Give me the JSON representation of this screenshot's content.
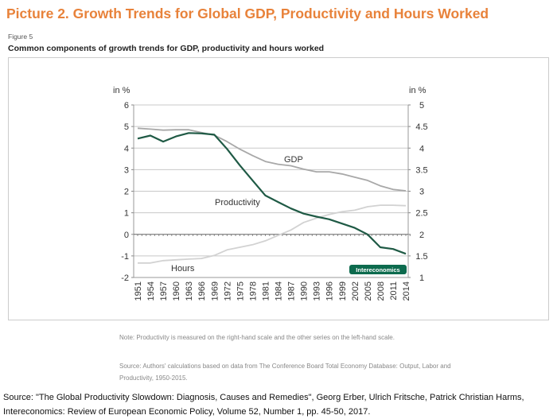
{
  "header": {
    "title": "Picture 2. Growth Trends for Global GDP, Productivity and Hours Worked",
    "figure_label": "Figure 5",
    "subtitle": "Common components of growth trends for GDP, productivity and hours worked"
  },
  "notes": {
    "note": "Note: Productivity is measured on the right-hand scale and the other series on the left-hand scale.",
    "source": "Source: Authors' calculations based on data from The Conference Board Total Economy Database: Output, Labor and Productivity, 1950-2015."
  },
  "footer": {
    "source_line1": "Source: \"The Global Productivity Slowdown: Diagnosis, Causes and Remedies\", Georg Erber, Ulrich Fritsche, Patrick Christian Harms,",
    "source_line2": "Intereconomics: Review of European Economic Policy, Volume 52, Number 1, pp. 45-50, 2017."
  },
  "chart_data": {
    "type": "line",
    "title": "Common components of growth trends for GDP, productivity and hours worked",
    "ylabel_left": "in %",
    "ylabel_right": "in %",
    "ylim_left": [
      -2,
      6
    ],
    "ylim_right": [
      1,
      5
    ],
    "yticks_left": [
      "6",
      "5",
      "4",
      "3",
      "2",
      "1",
      "0",
      "-1",
      "-2"
    ],
    "yticks_right": [
      "5",
      "4.5",
      "4",
      "3.5",
      "3",
      "2.5",
      "2",
      "1.5",
      "1"
    ],
    "grid": true,
    "x": [
      1951,
      1954,
      1957,
      1960,
      1963,
      1966,
      1969,
      1972,
      1975,
      1978,
      1981,
      1984,
      1987,
      1990,
      1993,
      1996,
      1999,
      2002,
      2005,
      2008,
      2011,
      2014
    ],
    "xticks": [
      "1951",
      "1954",
      "1957",
      "1960",
      "1963",
      "1966",
      "1969",
      "1972",
      "1975",
      "1978",
      "1981",
      "1984",
      "1987",
      "1990",
      "1993",
      "1996",
      "1999",
      "2002",
      "2005",
      "2008",
      "2011",
      "2014"
    ],
    "series": [
      {
        "name": "GDP",
        "axis": "left",
        "color": "#a8a8a8",
        "values": [
          4.92,
          4.88,
          4.83,
          4.85,
          4.85,
          4.72,
          4.6,
          4.3,
          3.95,
          3.65,
          3.38,
          3.25,
          3.18,
          3.02,
          2.9,
          2.9,
          2.8,
          2.65,
          2.5,
          2.25,
          2.08,
          2.02
        ]
      },
      {
        "name": "Productivity",
        "axis": "right",
        "color": "#1f5a45",
        "values": [
          4.22,
          4.29,
          4.15,
          4.27,
          4.35,
          4.34,
          4.31,
          3.98,
          3.6,
          3.25,
          2.9,
          2.75,
          2.6,
          2.48,
          2.41,
          2.35,
          2.25,
          2.15,
          2.0,
          1.7,
          1.66,
          1.55
        ]
      },
      {
        "name": "Hours",
        "axis": "left",
        "color": "#d2d2d2",
        "values": [
          -1.33,
          -1.33,
          -1.22,
          -1.18,
          -1.15,
          -1.12,
          -0.98,
          -0.72,
          -0.6,
          -0.48,
          -0.3,
          -0.05,
          0.2,
          0.55,
          0.75,
          0.92,
          1.05,
          1.12,
          1.28,
          1.35,
          1.35,
          1.33
        ]
      }
    ],
    "badge": "Intereconomics",
    "badge_color": "#0d6b4e"
  }
}
